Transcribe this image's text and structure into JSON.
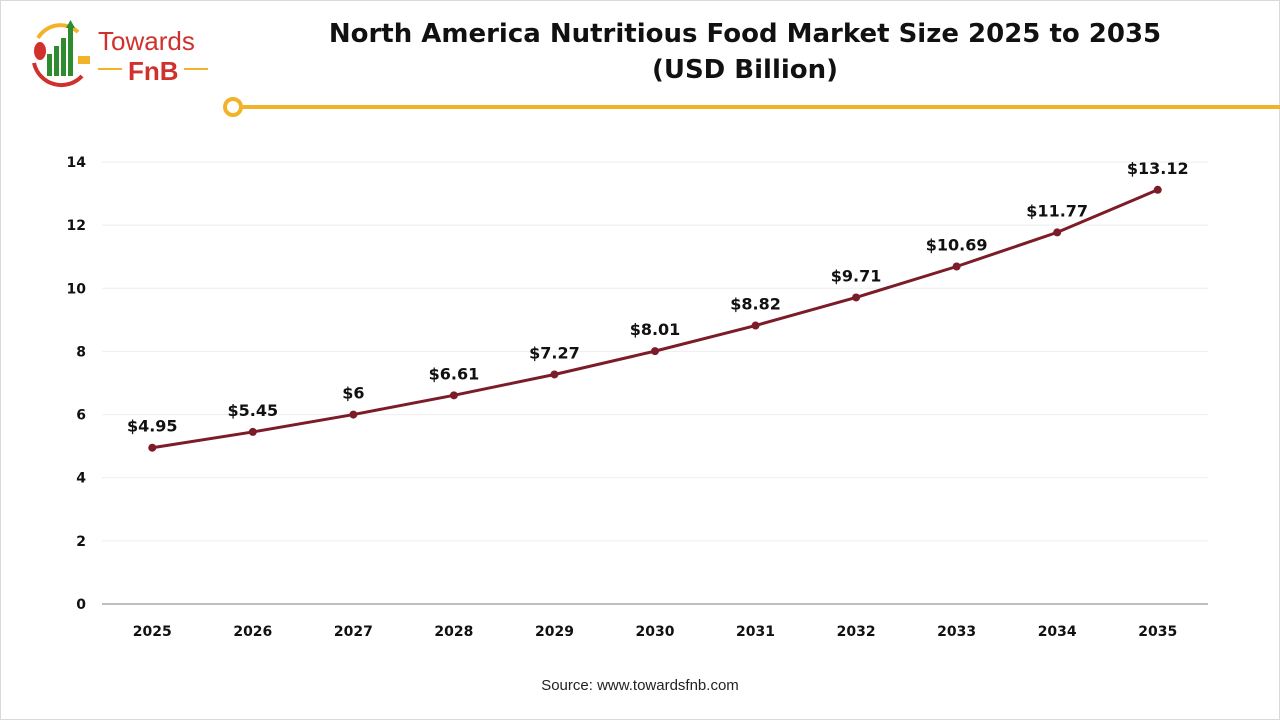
{
  "header": {
    "title_line1": "North America Nutritious Food Market Size 2025 to 2035",
    "title_line2": "(USD Billion)",
    "logo_text": "Towards FnB"
  },
  "footer": {
    "source": "Source: www.towardsfnb.com"
  },
  "colors": {
    "line": "#7b1c28",
    "accent": "#f2b32a",
    "logo_red": "#d0312d",
    "logo_green": "#2e8b2e"
  },
  "chart_data": {
    "type": "line",
    "title": "North America Nutritious Food Market Size 2025 to 2035 (USD Billion)",
    "categories": [
      "2025",
      "2026",
      "2027",
      "2028",
      "2029",
      "2030",
      "2031",
      "2032",
      "2033",
      "2034",
      "2035"
    ],
    "values": [
      4.95,
      5.45,
      6,
      6.61,
      7.27,
      8.01,
      8.82,
      9.71,
      10.69,
      11.77,
      13.12
    ],
    "data_labels": [
      "$4.95",
      "$5.45",
      "$6",
      "$6.61",
      "$7.27",
      "$8.01",
      "$8.82",
      "$9.71",
      "$10.69",
      "$11.77",
      "$13.12"
    ],
    "yticks": [
      0,
      2,
      4,
      6,
      8,
      10,
      12,
      14
    ],
    "ylim": [
      0,
      14
    ],
    "grid": true,
    "legend": "none"
  }
}
